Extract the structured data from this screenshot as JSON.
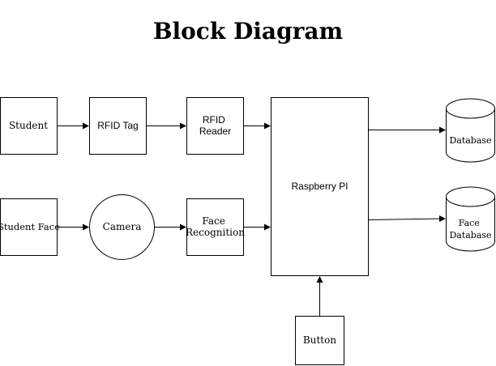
{
  "diagram": {
    "title": "Block Diagram",
    "nodes": {
      "student": "Student",
      "rfid_tag": "RFID Tag",
      "rfid_reader": [
        "RFID",
        "Reader"
      ],
      "student_face": "Student Face",
      "camera": "Camera",
      "face_recognition": [
        "Face",
        "Recognition"
      ],
      "raspberry_pi": "Raspberry PI",
      "database": "Database",
      "face_database": [
        "Face",
        "Database"
      ],
      "button": "Button"
    },
    "edges": [
      {
        "from": "Student",
        "to": "RFID Tag"
      },
      {
        "from": "RFID Tag",
        "to": "RFID Reader"
      },
      {
        "from": "RFID Reader",
        "to": "Raspberry PI"
      },
      {
        "from": "Student Face",
        "to": "Camera"
      },
      {
        "from": "Camera",
        "to": "Face Recognition"
      },
      {
        "from": "Face Recognition",
        "to": "Raspberry PI"
      },
      {
        "from": "Raspberry PI",
        "to": "Database"
      },
      {
        "from": "Raspberry PI",
        "to": "Face Database"
      },
      {
        "from": "Button",
        "to": "Raspberry PI"
      }
    ],
    "colors": {
      "stroke": "#000000",
      "fill": "#ffffff"
    }
  }
}
